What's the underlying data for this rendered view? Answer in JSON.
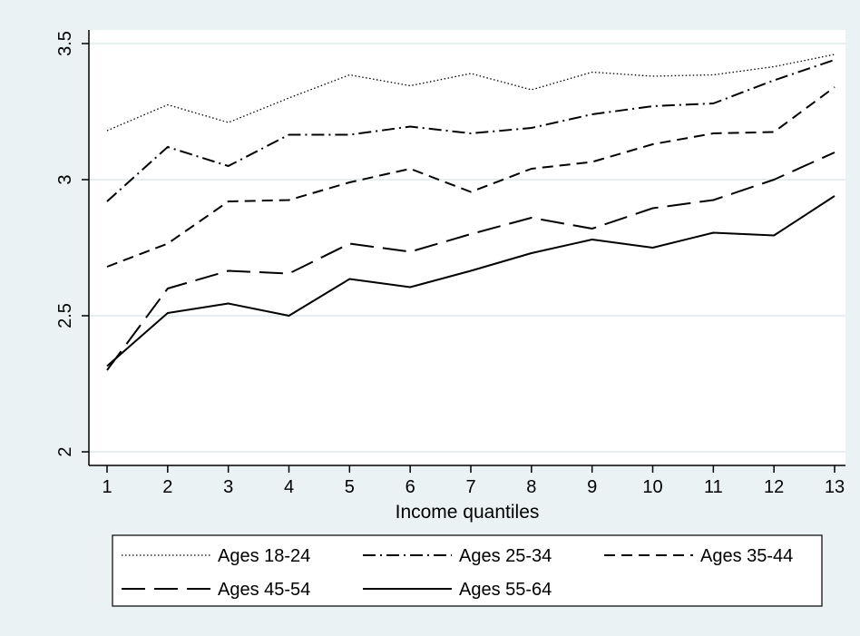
{
  "chart_data": {
    "type": "line",
    "title": "",
    "xlabel": "Income quantiles",
    "ylabel": "",
    "x": [
      1,
      2,
      3,
      4,
      5,
      6,
      7,
      8,
      9,
      10,
      11,
      12,
      13
    ],
    "xlim": [
      1,
      13
    ],
    "ylim": [
      2,
      3.5
    ],
    "yticks": [
      2,
      2.5,
      3,
      3.5
    ],
    "ytick_labels": [
      "2",
      "2.5",
      "3",
      "3.5"
    ],
    "xtick_labels": [
      "1",
      "2",
      "3",
      "4",
      "5",
      "6",
      "7",
      "8",
      "9",
      "10",
      "11",
      "12",
      "13"
    ],
    "grid": true,
    "legend_position": "bottom",
    "series": [
      {
        "name": "Ages 18-24",
        "dash": "dotted",
        "values": [
          3.18,
          3.275,
          3.21,
          3.3,
          3.385,
          3.345,
          3.39,
          3.33,
          3.395,
          3.38,
          3.385,
          3.415,
          3.46
        ]
      },
      {
        "name": "Ages 25-34",
        "dash": "dash-dot",
        "values": [
          2.92,
          3.12,
          3.05,
          3.165,
          3.165,
          3.195,
          3.17,
          3.19,
          3.24,
          3.27,
          3.28,
          3.365,
          3.44
        ]
      },
      {
        "name": "Ages 35-44",
        "dash": "short-dash",
        "values": [
          2.68,
          2.765,
          2.92,
          2.925,
          2.99,
          3.04,
          2.955,
          3.04,
          3.065,
          3.13,
          3.17,
          3.175,
          3.34
        ]
      },
      {
        "name": "Ages 45-54",
        "dash": "long-dash",
        "values": [
          2.3,
          2.6,
          2.665,
          2.655,
          2.765,
          2.735,
          2.8,
          2.86,
          2.82,
          2.895,
          2.925,
          3.0,
          3.1
        ]
      },
      {
        "name": "Ages 55-64",
        "dash": "solid",
        "values": [
          2.315,
          2.51,
          2.545,
          2.5,
          2.635,
          2.605,
          2.665,
          2.73,
          2.78,
          2.75,
          2.805,
          2.795,
          2.94
        ]
      }
    ]
  }
}
